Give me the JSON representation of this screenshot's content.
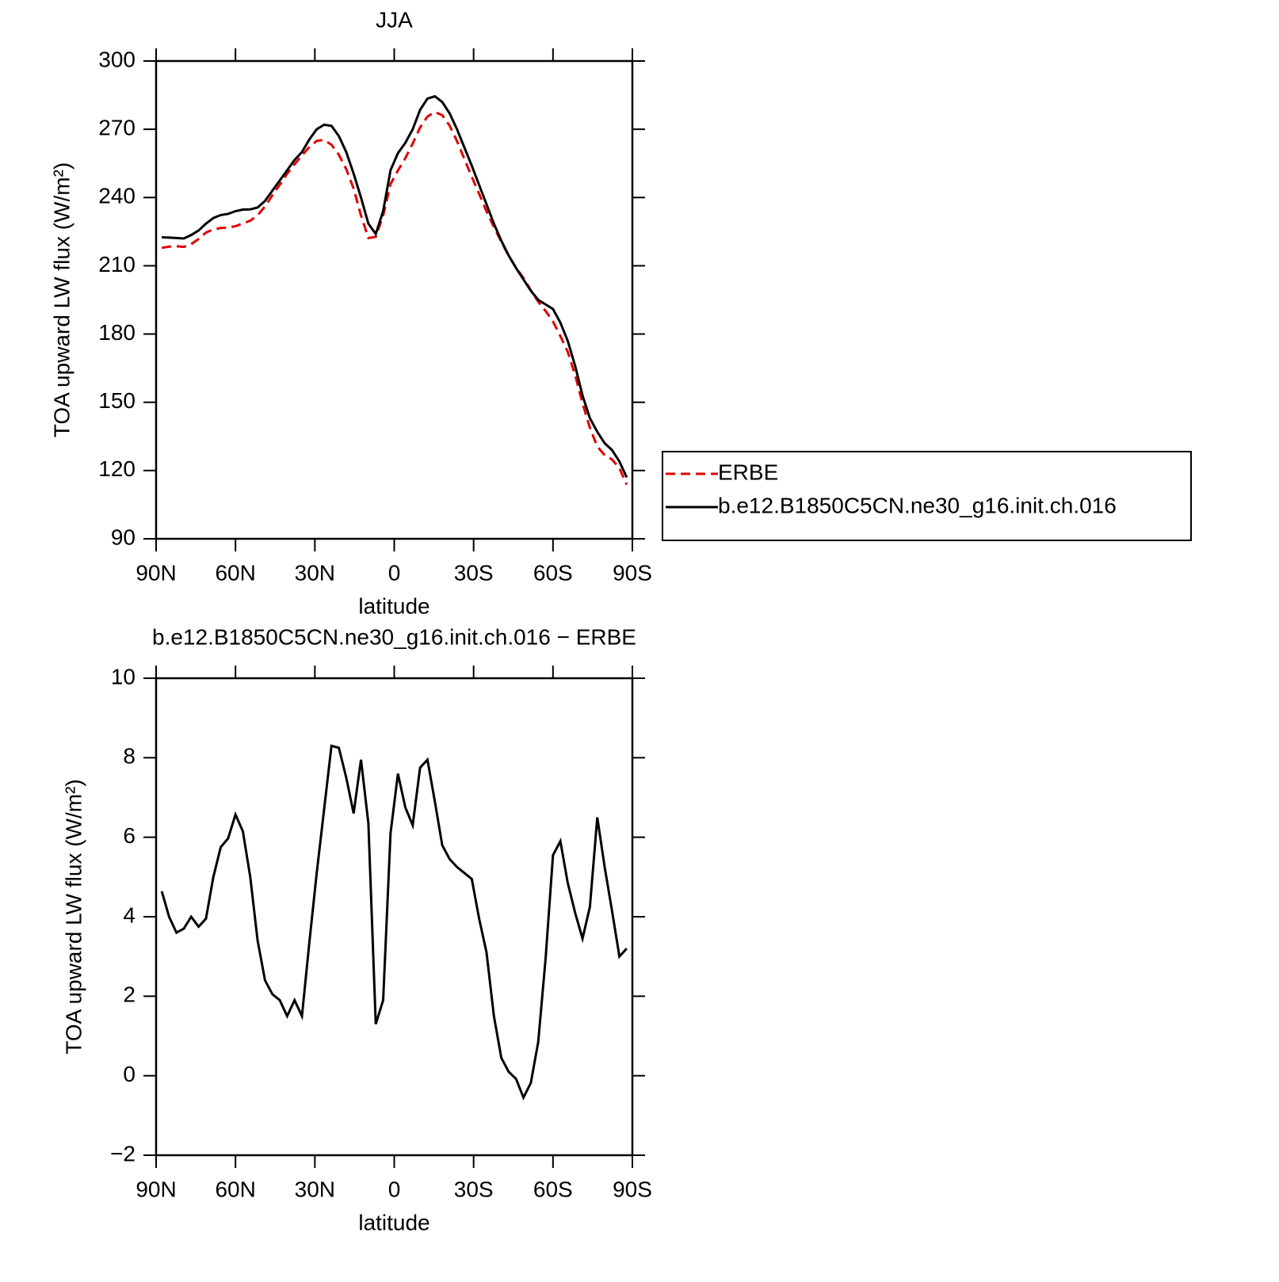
{
  "chart_data": [
    {
      "type": "line",
      "title": "JJA",
      "xlabel": "latitude",
      "ylabel": "TOA upward LW flux (W/m²)",
      "x": [
        87.86,
        85.1,
        82.31,
        79.53,
        76.74,
        73.95,
        71.16,
        68.37,
        65.58,
        62.79,
        60.0,
        57.21,
        54.42,
        51.63,
        48.84,
        46.05,
        43.26,
        40.47,
        37.67,
        34.88,
        32.09,
        29.3,
        26.51,
        23.72,
        20.93,
        18.14,
        15.35,
        12.56,
        9.77,
        6.98,
        4.19,
        1.4,
        -1.4,
        -4.19,
        -6.98,
        -9.77,
        -12.56,
        -15.35,
        -18.14,
        -20.93,
        -23.72,
        -26.51,
        -29.3,
        -32.09,
        -34.88,
        -37.67,
        -40.47,
        -43.26,
        -46.05,
        -48.84,
        -51.63,
        -54.42,
        -57.21,
        -60.0,
        -62.79,
        -65.58,
        -68.37,
        -71.16,
        -73.95,
        -76.74,
        -79.53,
        -82.31,
        -85.1,
        -87.86
      ],
      "xlim": [
        90,
        -90
      ],
      "xticks": [
        {
          "value": 90,
          "label": "90N"
        },
        {
          "value": 60,
          "label": "60N"
        },
        {
          "value": 30,
          "label": "30N"
        },
        0,
        {
          "value": -30,
          "label": "30S"
        },
        {
          "value": -60,
          "label": "60S"
        },
        {
          "value": -90,
          "label": "90S"
        }
      ],
      "ylim": [
        90,
        300
      ],
      "yticks": [
        90,
        120,
        150,
        180,
        210,
        240,
        270,
        300
      ],
      "legend": "right",
      "series": [
        {
          "name": "ERBE",
          "color": "#e00000",
          "style": "dashed",
          "values": [
            217.9,
            218.4,
            218.6,
            218.3,
            219.5,
            221.8,
            224.6,
            226.0,
            226.6,
            226.8,
            227.4,
            228.6,
            229.8,
            232.2,
            236.1,
            241.0,
            245.6,
            250.5,
            254.6,
            258.5,
            262.2,
            264.9,
            265.3,
            263.2,
            258.8,
            252.5,
            243.9,
            232.1,
            222.2,
            222.7,
            232.1,
            245.9,
            251.9,
            257.3,
            263.7,
            270.8,
            275.6,
            277.6,
            276.2,
            271.6,
            264.8,
            256.9,
            249.1,
            241.6,
            233.9,
            227.0,
            220.6,
            214.4,
            209.1,
            204.6,
            199.2,
            194.2,
            190.1,
            185.5,
            179.1,
            172.2,
            161.9,
            149.6,
            138.8,
            130.5,
            126.8,
            124.9,
            121.0,
            113.8
          ]
        },
        {
          "name": "b.e12.B1850C5CN.ne30_g16.init.ch.016",
          "color": "#000000",
          "style": "solid",
          "values": [
            222.5,
            222.4,
            222.2,
            222.0,
            223.5,
            225.5,
            228.5,
            231.0,
            232.3,
            232.8,
            234.0,
            234.7,
            234.8,
            235.6,
            238.5,
            243.0,
            247.5,
            252.0,
            256.5,
            260.0,
            265.5,
            270.0,
            272.0,
            271.5,
            267.0,
            260.0,
            250.5,
            240.0,
            228.5,
            224.0,
            234.0,
            252.0,
            259.5,
            264.0,
            270.0,
            278.5,
            283.5,
            284.5,
            282.0,
            277.0,
            270.0,
            262.0,
            254.0,
            245.5,
            237.0,
            228.5,
            221.0,
            214.5,
            209.0,
            204.0,
            199.0,
            195.0,
            193.0,
            191.0,
            185.0,
            177.0,
            166.0,
            153.0,
            143.0,
            137.0,
            132.0,
            129.0,
            124.0,
            117.0
          ]
        }
      ]
    },
    {
      "type": "line",
      "title": "b.e12.B1850C5CN.ne30_g16.init.ch.016 − ERBE",
      "xlabel": "latitude",
      "ylabel": "TOA upward LW flux (W/m²)",
      "x": [
        87.86,
        85.1,
        82.31,
        79.53,
        76.74,
        73.95,
        71.16,
        68.37,
        65.58,
        62.79,
        60.0,
        57.21,
        54.42,
        51.63,
        48.84,
        46.05,
        43.26,
        40.47,
        37.67,
        34.88,
        32.09,
        29.3,
        26.51,
        23.72,
        20.93,
        18.14,
        15.35,
        12.56,
        9.77,
        6.98,
        4.19,
        1.4,
        -1.4,
        -4.19,
        -6.98,
        -9.77,
        -12.56,
        -15.35,
        -18.14,
        -20.93,
        -23.72,
        -26.51,
        -29.3,
        -32.09,
        -34.88,
        -37.67,
        -40.47,
        -43.26,
        -46.05,
        -48.84,
        -51.63,
        -54.42,
        -57.21,
        -60.0,
        -62.79,
        -65.58,
        -68.37,
        -71.16,
        -73.95,
        -76.74,
        -79.53,
        -82.31,
        -85.1,
        -87.86
      ],
      "xlim": [
        90,
        -90
      ],
      "xticks": [
        {
          "value": 90,
          "label": "90N"
        },
        {
          "value": 60,
          "label": "60N"
        },
        {
          "value": 30,
          "label": "30N"
        },
        0,
        {
          "value": -30,
          "label": "30S"
        },
        {
          "value": -60,
          "label": "60S"
        },
        {
          "value": -90,
          "label": "90S"
        }
      ],
      "ylim": [
        -2,
        10
      ],
      "yticks": [
        {
          "value": -2,
          "label": "−2"
        },
        0,
        2,
        4,
        6,
        8,
        10
      ],
      "color": "#000000",
      "values": [
        4.64,
        4.0,
        3.6,
        3.7,
        4.0,
        3.75,
        3.95,
        5.0,
        5.75,
        5.97,
        6.57,
        6.15,
        5.0,
        3.4,
        2.4,
        2.05,
        1.9,
        1.5,
        1.9,
        1.5,
        3.35,
        5.1,
        6.7,
        8.3,
        8.25,
        7.5,
        6.6,
        7.95,
        6.35,
        1.3,
        1.9,
        6.1,
        7.6,
        6.75,
        6.3,
        7.75,
        7.95,
        6.9,
        5.8,
        5.45,
        5.25,
        5.1,
        4.95,
        3.95,
        3.1,
        1.5,
        0.45,
        0.1,
        -0.08,
        -0.55,
        -0.18,
        0.85,
        2.95,
        5.55,
        5.9,
        4.85,
        4.1,
        3.45,
        4.25,
        6.5,
        5.25,
        4.15,
        3.0,
        3.2
      ]
    }
  ]
}
